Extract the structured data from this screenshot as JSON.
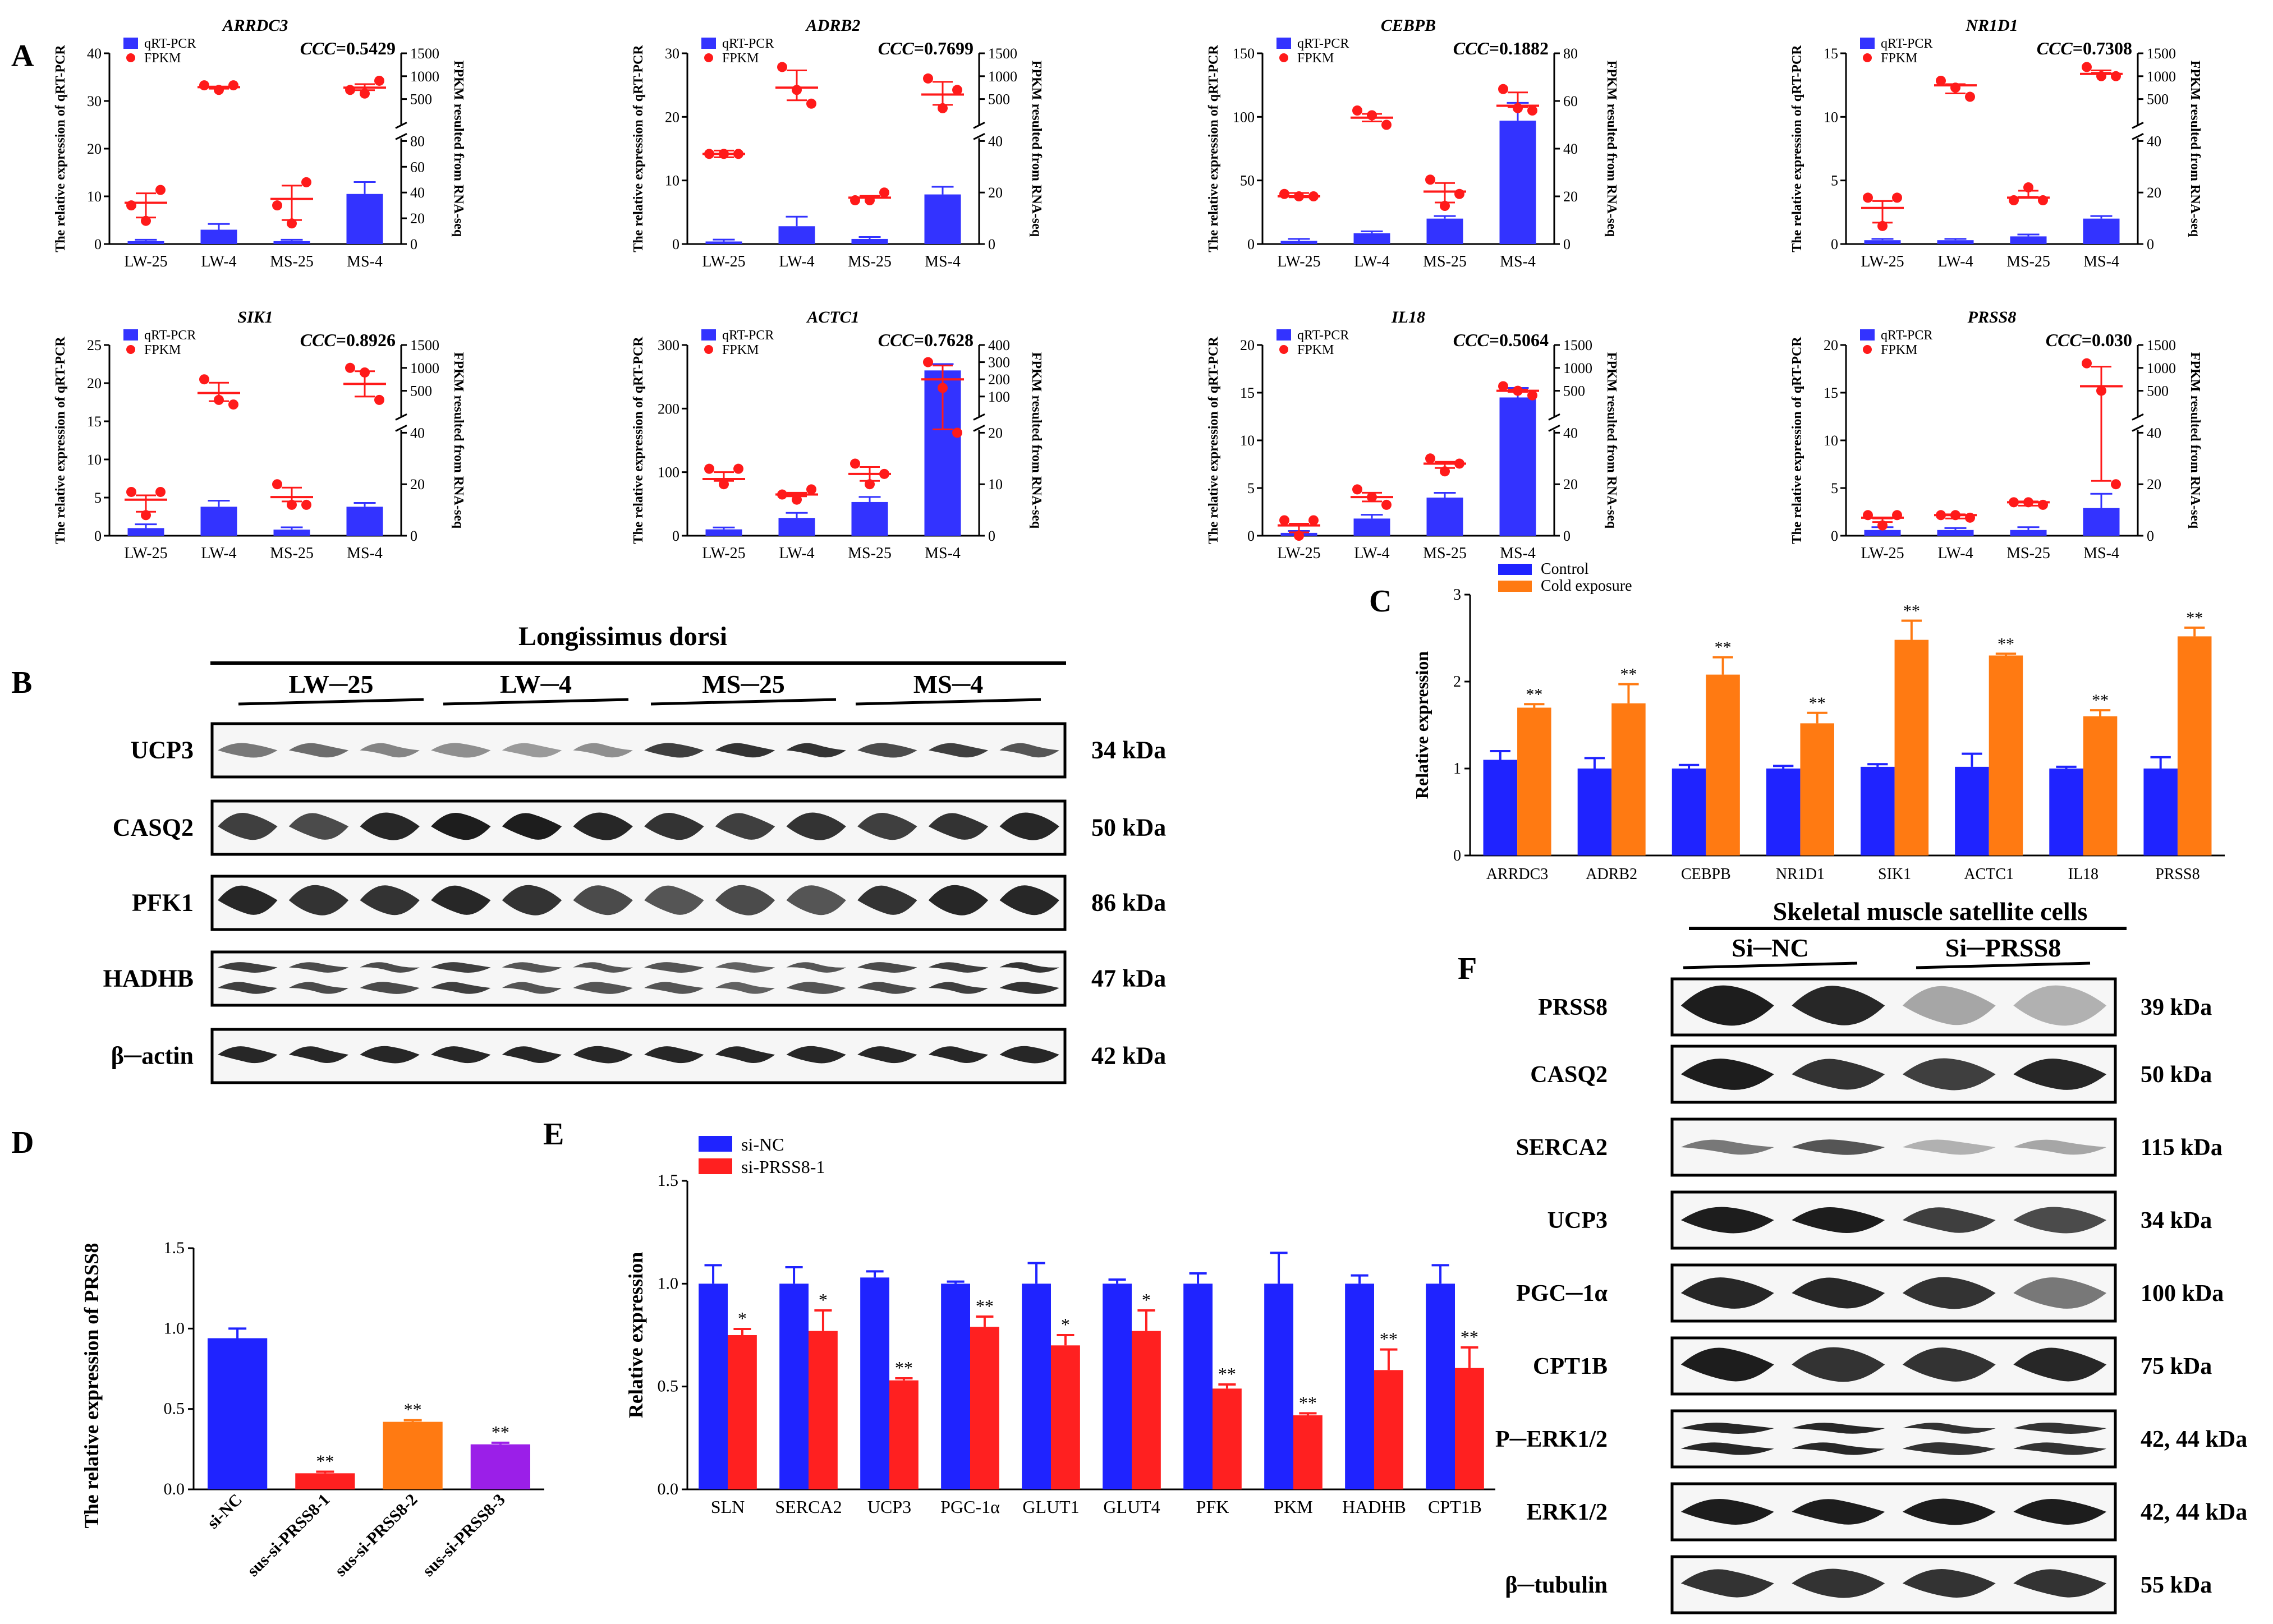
{
  "colors": {
    "qrt": "#3333ff",
    "fpkm": "#ff1a1a",
    "control": "#1f23ff",
    "cold": "#ff7a12",
    "sinc": "#1f23ff",
    "siprss": "#ff2020",
    "sus1": "#ff2020",
    "sus2": "#ff7a12",
    "sus3": "#9b1fe8"
  },
  "panels": {
    "A": "A",
    "B": "B",
    "C": "C",
    "D": "D",
    "E": "E",
    "F": "F"
  },
  "panel_a": {
    "y_label_left": "The relative expression of qRT-PCR",
    "y_label_right": "FPKM resulted from RNA-seq",
    "legend_qrt": "qRT-PCR",
    "legend_fpkm": "FPKM",
    "ccc_prefix": "CCC"
  },
  "chart_data": [
    {
      "id": "a1",
      "type": "bar",
      "gene": "ARRDC3",
      "ccc": "=0.5429",
      "categories": [
        "LW-25",
        "LW-4",
        "MS-25",
        "MS-4"
      ],
      "qrt": [
        0.6,
        3.0,
        0.6,
        10.5
      ],
      "qrt_err": [
        0.3,
        1.2,
        0.3,
        2.5
      ],
      "ylim": [
        0,
        40
      ],
      "yticks": [
        0,
        10,
        20,
        30,
        40
      ],
      "fpkm_points": [
        [
          30,
          18,
          42
        ],
        [
          800,
          700,
          800
        ],
        [
          30,
          16,
          48
        ],
        [
          700,
          620,
          900
        ]
      ],
      "fpkm_mean": [
        32,
        760,
        35,
        750
      ],
      "rt_low": [
        0,
        20,
        40,
        60,
        80
      ],
      "rt_high": [
        500,
        1000,
        1500
      ]
    },
    {
      "id": "a2",
      "type": "bar",
      "gene": "ADRB2",
      "ccc": "=0.7699",
      "categories": [
        "LW-25",
        "LW-4",
        "MS-25",
        "MS-4"
      ],
      "qrt": [
        0.4,
        2.8,
        0.8,
        7.8
      ],
      "qrt_err": [
        0.3,
        1.5,
        0.3,
        1.2
      ],
      "ylim": [
        0,
        30
      ],
      "yticks": [
        0,
        10,
        20,
        30
      ],
      "fpkm_points": [
        [
          35,
          35,
          35
        ],
        [
          1200,
          700,
          400
        ],
        [
          17,
          17,
          20
        ],
        [
          950,
          300,
          700
        ]
      ],
      "fpkm_mean": [
        35,
        750,
        18,
        600
      ],
      "rt_low": [
        0,
        20,
        40
      ],
      "rt_high": [
        500,
        1000,
        1500
      ]
    },
    {
      "id": "a3",
      "type": "bar",
      "gene": "CEBPB",
      "ccc": "=0.1882",
      "categories": [
        "LW-25",
        "LW-4",
        "MS-25",
        "MS-4"
      ],
      "qrt": [
        2.5,
        8.5,
        20,
        97
      ],
      "qrt_err": [
        1.5,
        1.5,
        2,
        14
      ],
      "ylim": [
        0,
        150
      ],
      "yticks": [
        0,
        50,
        100,
        150
      ],
      "fpkm_points": [
        [
          21,
          20,
          20
        ],
        [
          56,
          54,
          50
        ],
        [
          27,
          16,
          21
        ],
        [
          65,
          57,
          56
        ]
      ],
      "fpkm_mean": [
        20,
        53,
        22,
        58
      ],
      "rt_low": [
        0,
        20,
        40,
        60,
        80
      ]
    },
    {
      "id": "a4",
      "type": "bar",
      "gene": "NR1D1",
      "ccc": "=0.7308",
      "categories": [
        "LW-25",
        "LW-4",
        "MS-25",
        "MS-4"
      ],
      "qrt": [
        0.3,
        0.3,
        0.6,
        2.0
      ],
      "qrt_err": [
        0.1,
        0.1,
        0.15,
        0.2
      ],
      "ylim": [
        0,
        15
      ],
      "yticks": [
        0,
        5,
        10,
        15
      ],
      "fpkm_points": [
        [
          18,
          7,
          18
        ],
        [
          900,
          750,
          550
        ],
        [
          17,
          22,
          17
        ],
        [
          1200,
          1000,
          1000
        ]
      ],
      "fpkm_mean": [
        14,
        800,
        18,
        1050
      ],
      "rt_low": [
        0,
        20,
        40
      ],
      "rt_high": [
        500,
        1000,
        1500
      ]
    },
    {
      "id": "a5",
      "type": "bar",
      "gene": "SIK1",
      "ccc": "=0.8926",
      "categories": [
        "LW-25",
        "LW-4",
        "MS-25",
        "MS-4"
      ],
      "qrt": [
        1.0,
        3.8,
        0.8,
        3.8
      ],
      "qrt_err": [
        0.5,
        0.8,
        0.3,
        0.5
      ],
      "ylim": [
        0,
        25
      ],
      "yticks": [
        0,
        5,
        10,
        15,
        20,
        25
      ],
      "fpkm_points": [
        [
          17,
          8,
          17
        ],
        [
          750,
          300,
          200
        ],
        [
          20,
          12,
          12
        ],
        [
          1000,
          900,
          300
        ]
      ],
      "fpkm_mean": [
        14,
        450,
        15,
        650
      ],
      "rt_low": [
        0,
        20,
        40
      ],
      "rt_high": [
        500,
        1000,
        1500
      ]
    },
    {
      "id": "a6",
      "type": "bar",
      "gene": "ACTC1",
      "ccc": "=0.7628",
      "categories": [
        "LW-25",
        "LW-4",
        "MS-25",
        "MS-4"
      ],
      "qrt": [
        10,
        28,
        53,
        260
      ],
      "qrt_err": [
        3,
        8,
        8,
        10
      ],
      "ylim": [
        0,
        300
      ],
      "yticks": [
        0,
        100,
        200,
        300
      ],
      "fpkm_points": [
        [
          13,
          10,
          13
        ],
        [
          8,
          7,
          9
        ],
        [
          14,
          10,
          12
        ],
        [
          300,
          150,
          20
        ]
      ],
      "fpkm_mean": [
        11,
        8,
        12,
        200
      ],
      "rt_low": [
        0,
        10,
        20
      ],
      "rt_high": [
        100,
        200,
        300,
        400
      ]
    },
    {
      "id": "a7",
      "type": "bar",
      "gene": "IL18",
      "ccc": "=0.5064",
      "categories": [
        "LW-25",
        "LW-4",
        "MS-25",
        "MS-4"
      ],
      "qrt": [
        0.3,
        1.8,
        4.0,
        14.5
      ],
      "qrt_err": [
        0.2,
        0.4,
        0.5,
        1.0
      ],
      "ylim": [
        0,
        20
      ],
      "yticks": [
        0,
        5,
        10,
        15,
        20
      ],
      "fpkm_points": [
        [
          6,
          0,
          6
        ],
        [
          18,
          15,
          12
        ],
        [
          30,
          25,
          28
        ],
        [
          600,
          500,
          400
        ]
      ],
      "fpkm_mean": [
        4,
        15,
        28,
        500
      ],
      "rt_low": [
        0,
        20,
        40
      ],
      "rt_high": [
        500,
        1000,
        1500
      ]
    },
    {
      "id": "a8",
      "type": "bar",
      "gene": "PRSS8",
      "ccc": "=0.030",
      "categories": [
        "LW-25",
        "LW-4",
        "MS-25",
        "MS-4"
      ],
      "qrt": [
        0.6,
        0.6,
        0.6,
        2.9
      ],
      "qrt_err": [
        0.3,
        0.2,
        0.3,
        1.5
      ],
      "ylim": [
        0,
        20
      ],
      "yticks": [
        0,
        5,
        10,
        15,
        20
      ],
      "fpkm_points": [
        [
          8,
          4,
          8
        ],
        [
          8,
          8,
          7
        ],
        [
          13,
          13,
          12
        ],
        [
          1100,
          500,
          20
        ]
      ],
      "fpkm_mean": [
        7,
        8,
        13,
        600
      ],
      "rt_low": [
        0,
        20,
        40
      ],
      "rt_high": [
        500,
        1000,
        1500
      ]
    },
    {
      "id": "c",
      "type": "bar",
      "ylabel": "Relative expression",
      "ylim": [
        0,
        3
      ],
      "yticks": [
        0,
        1,
        2,
        3
      ],
      "categories": [
        "ARRDC3",
        "ADRB2",
        "CEBPB",
        "NR1D1",
        "SIK1",
        "ACTC1",
        "IL18",
        "PRSS8"
      ],
      "series": [
        {
          "name": "Control",
          "values": [
            1.1,
            1.0,
            1.0,
            1.0,
            1.02,
            1.02,
            1.0,
            1.0
          ],
          "err": [
            0.1,
            0.12,
            0.04,
            0.03,
            0.03,
            0.15,
            0.02,
            0.13
          ]
        },
        {
          "name": "Cold exposure",
          "values": [
            1.7,
            1.75,
            2.08,
            1.52,
            2.48,
            2.3,
            1.6,
            2.52
          ],
          "err": [
            0.04,
            0.22,
            0.2,
            0.12,
            0.22,
            0.02,
            0.07,
            0.1
          ]
        }
      ],
      "annotations": [
        "**",
        "**",
        "**",
        "**",
        "**",
        "**",
        "**",
        "**"
      ]
    },
    {
      "id": "d",
      "type": "bar",
      "ylabel": "The relative expression of PRSS8",
      "ylim": [
        0,
        1.5
      ],
      "yticks": [
        "0.0",
        "0.5",
        "1.0",
        "1.5"
      ],
      "categories": [
        "si-NC",
        "sus-si-PRSS8-1",
        "sus-si-PRSS8-2",
        "sus-si-PRSS8-3"
      ],
      "values": [
        0.94,
        0.1,
        0.42,
        0.28
      ],
      "err": [
        0.06,
        0.01,
        0.01,
        0.01
      ],
      "annotations": [
        "",
        "**",
        "**",
        "**"
      ]
    },
    {
      "id": "e",
      "type": "bar",
      "ylabel": "Relative expression",
      "ylim": [
        0,
        1.5
      ],
      "yticks": [
        "0.0",
        "0.5",
        "1.0",
        "1.5"
      ],
      "categories": [
        "SLN",
        "SERCA2",
        "UCP3",
        "PGC-1α",
        "GLUT1",
        "GLUT4",
        "PFK",
        "PKM",
        "HADHB",
        "CPT1B"
      ],
      "series": [
        {
          "name": "si-NC",
          "values": [
            1.0,
            1.0,
            1.03,
            1.0,
            1.0,
            1.0,
            1.0,
            1.0,
            1.0,
            1.0
          ],
          "err": [
            0.09,
            0.08,
            0.03,
            0.01,
            0.1,
            0.02,
            0.05,
            0.15,
            0.04,
            0.09
          ]
        },
        {
          "name": "si-PRSS8-1",
          "values": [
            0.75,
            0.77,
            0.53,
            0.79,
            0.7,
            0.77,
            0.49,
            0.36,
            0.58,
            0.59
          ],
          "err": [
            0.03,
            0.1,
            0.01,
            0.05,
            0.05,
            0.1,
            0.02,
            0.01,
            0.1,
            0.1
          ]
        }
      ],
      "annotations": [
        "*",
        "*",
        "**",
        "**",
        "*",
        "*",
        "**",
        "**",
        "**",
        "**"
      ]
    }
  ],
  "panel_b": {
    "title": "Longissimus dorsi",
    "groups": [
      "LW─25",
      "LW─4",
      "MS─25",
      "MS─4"
    ],
    "blots": [
      {
        "name": "UCP3",
        "kda": "34 kDa"
      },
      {
        "name": "CASQ2",
        "kda": "50 kDa"
      },
      {
        "name": "PFK1",
        "kda": "86 kDa"
      },
      {
        "name": "HADHB",
        "kda": "47 kDa"
      },
      {
        "name": "β─actin",
        "kda": "42 kDa"
      }
    ]
  },
  "panel_f": {
    "title": "Skeletal muscle satellite cells",
    "groups": [
      "Si─NC",
      "Si─PRSS8"
    ],
    "blots": [
      {
        "name": "PRSS8",
        "kda": "39 kDa"
      },
      {
        "name": "CASQ2",
        "kda": "50 kDa"
      },
      {
        "name": "SERCA2",
        "kda": "115 kDa"
      },
      {
        "name": "UCP3",
        "kda": "34 kDa"
      },
      {
        "name": "PGC─1α",
        "kda": "100 kDa"
      },
      {
        "name": "CPT1B",
        "kda": "75 kDa"
      },
      {
        "name": "P─ERK1/2",
        "kda": "42, 44 kDa"
      },
      {
        "name": "ERK1/2",
        "kda": "42, 44 kDa"
      },
      {
        "name": "β─tubulin",
        "kda": "55 kDa"
      }
    ]
  }
}
